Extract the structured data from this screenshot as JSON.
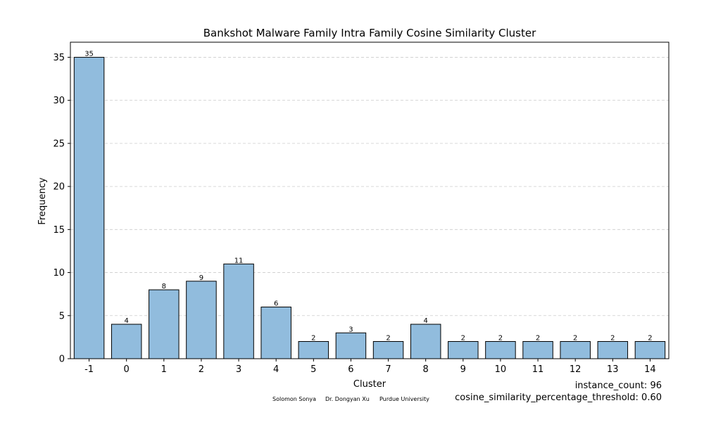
{
  "chart_data": {
    "type": "bar",
    "title": "Bankshot Malware Family Intra Family Cosine Similarity Cluster",
    "xlabel": "Cluster",
    "ylabel": "Frequency",
    "categories": [
      "-1",
      "0",
      "1",
      "2",
      "3",
      "4",
      "5",
      "6",
      "7",
      "8",
      "9",
      "10",
      "11",
      "12",
      "13",
      "14"
    ],
    "values": [
      35,
      4,
      8,
      9,
      11,
      6,
      2,
      3,
      2,
      4,
      2,
      2,
      2,
      2,
      2,
      2
    ],
    "ylim": [
      0,
      36.75
    ],
    "yticks": [
      0,
      5,
      10,
      15,
      20,
      25,
      30,
      35
    ],
    "grid": "y-dashed",
    "bar_color": "#91bcdd",
    "bar_edge_color": "#000000"
  },
  "footer": {
    "instance_count": "instance_count: 96",
    "threshold": "cosine_similarity_percentage_threshold: 0.60",
    "credits": [
      "Solomon Sonya",
      "Dr. Dongyan Xu",
      "Purdue University"
    ]
  }
}
